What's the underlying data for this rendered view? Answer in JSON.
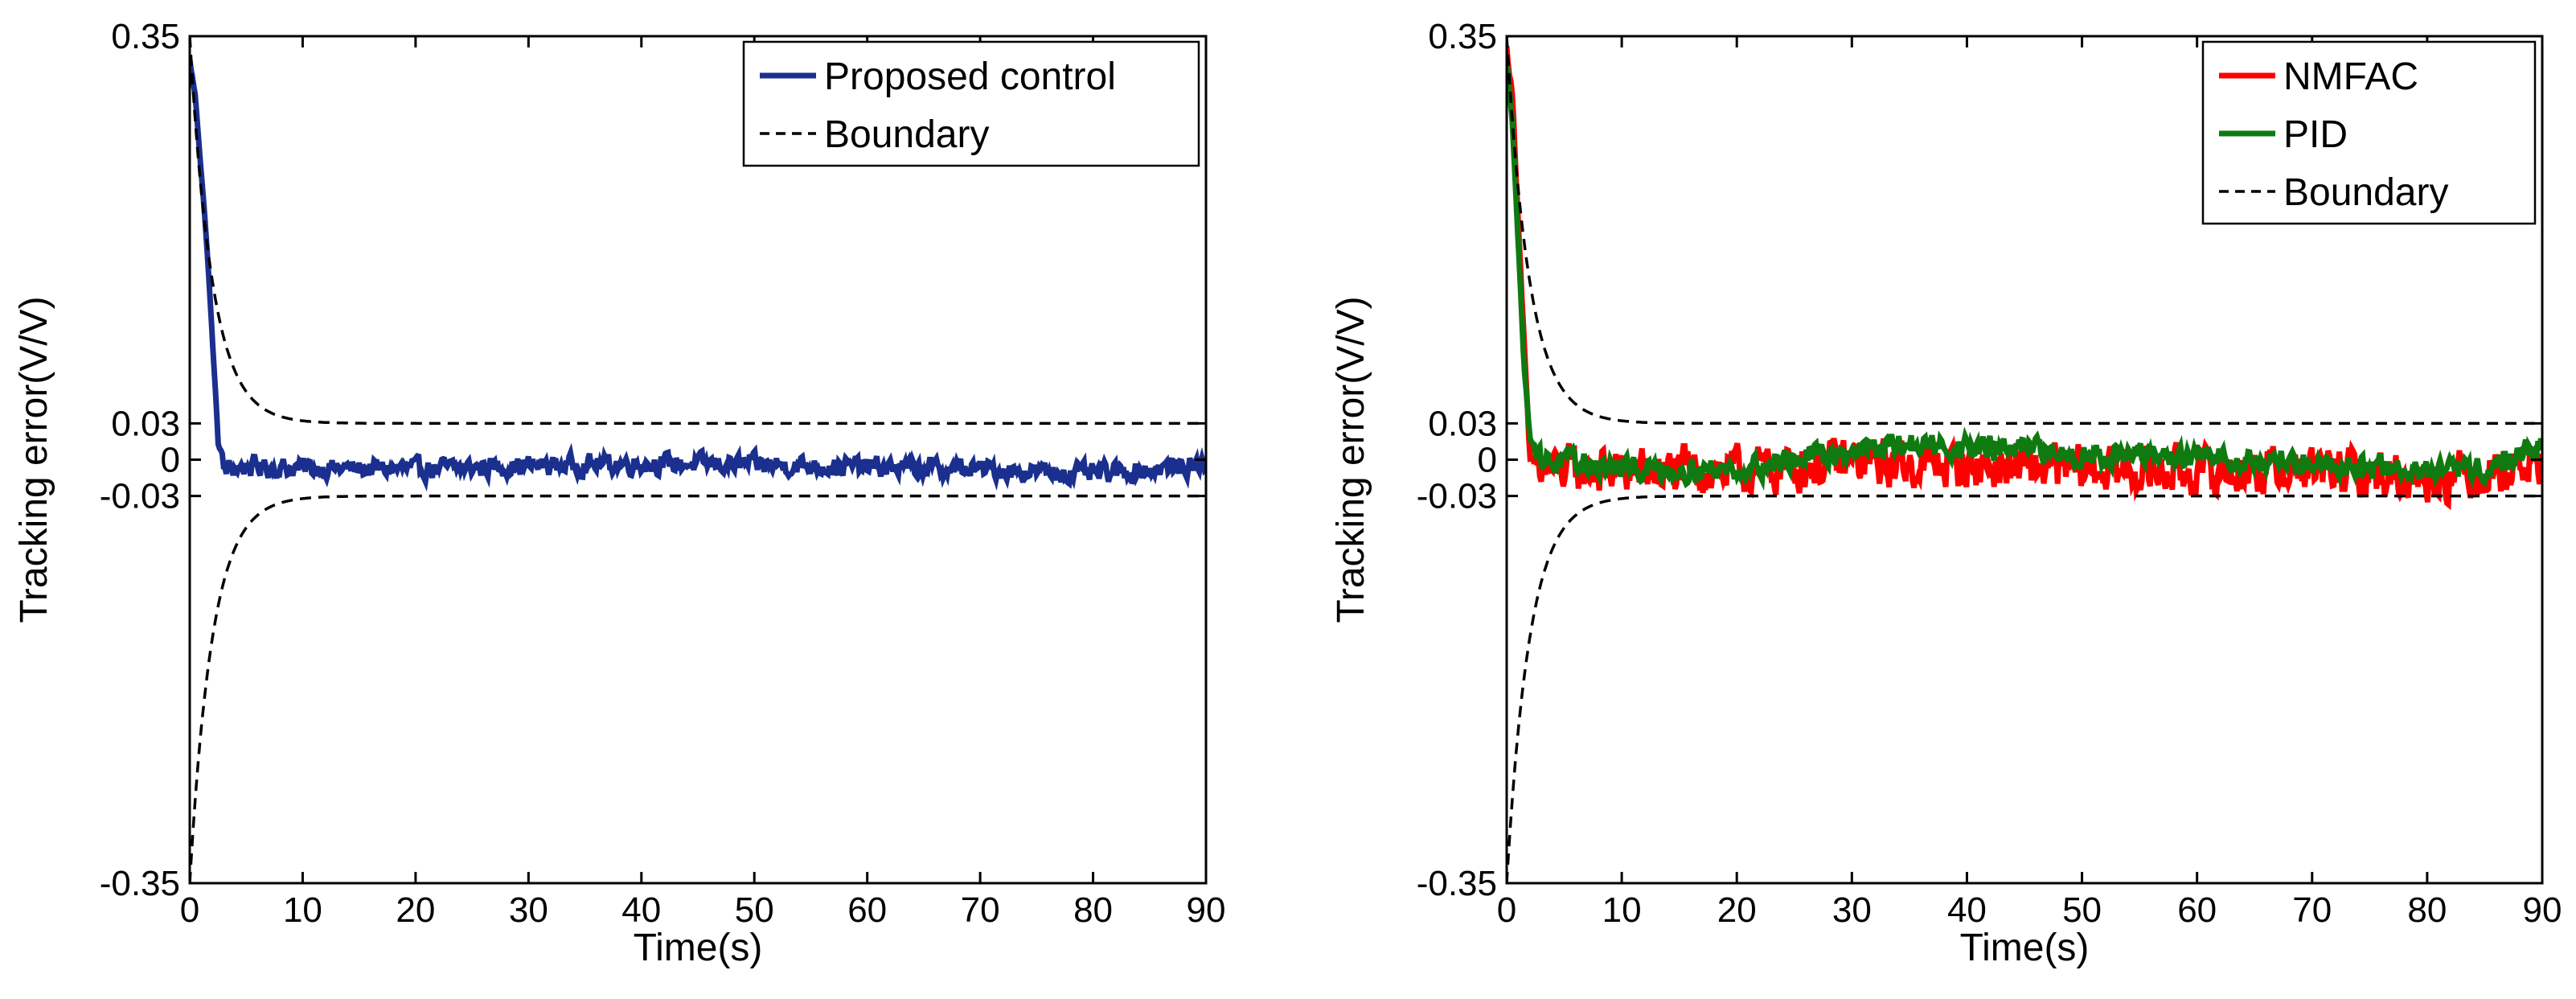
{
  "chart_data": [
    {
      "type": "line",
      "title": "",
      "xlabel": "Time(s)",
      "ylabel": "Tracking error(V/V)",
      "xlim": [
        0,
        90
      ],
      "ylim": [
        -0.35,
        0.35
      ],
      "xticks": [
        0,
        10,
        20,
        30,
        40,
        50,
        60,
        70,
        80,
        90
      ],
      "yticks": [
        -0.35,
        -0.03,
        0,
        0.03,
        0.35
      ],
      "ytick_labels": [
        "-0.35",
        "-0.03",
        "0",
        "0.03",
        "0.35"
      ],
      "legend_position": "top-right",
      "boundary": {
        "name": "Boundary",
        "rho0": 0.35,
        "rho_inf": 0.03,
        "decay_rate": 0.5,
        "color": "#000000",
        "style": "dashed"
      },
      "series": [
        {
          "name": "Proposed control",
          "color": "#1a2f8e",
          "x": [
            0,
            0.5,
            1,
            1.5,
            2,
            2.5,
            3,
            5,
            10,
            20,
            30,
            40,
            50,
            60,
            70,
            80,
            90
          ],
          "values": [
            0.33,
            0.3,
            0.24,
            0.18,
            0.1,
            0.02,
            -0.008,
            -0.006,
            -0.007,
            -0.008,
            -0.005,
            -0.003,
            -0.004,
            -0.006,
            -0.008,
            -0.012,
            -0.004
          ],
          "noise_amplitude": 0.012
        }
      ]
    },
    {
      "type": "line",
      "title": "",
      "xlabel": "Time(s)",
      "ylabel": "Tracking error(V/V)",
      "xlim": [
        0,
        90
      ],
      "ylim": [
        -0.35,
        0.35
      ],
      "xticks": [
        0,
        10,
        20,
        30,
        40,
        50,
        60,
        70,
        80,
        90
      ],
      "yticks": [
        -0.35,
        -0.03,
        0,
        0.03,
        0.35
      ],
      "ytick_labels": [
        "-0.35",
        "-0.03",
        "0",
        "0.03",
        "0.35"
      ],
      "legend_position": "top-right",
      "boundary": {
        "name": "Boundary",
        "rho0": 0.35,
        "rho_inf": 0.03,
        "decay_rate": 0.5,
        "color": "#000000",
        "style": "dashed"
      },
      "series": [
        {
          "name": "NMFAC",
          "color": "#ff0000",
          "x": [
            0,
            0.5,
            1,
            1.5,
            2,
            3,
            5,
            10,
            20,
            30,
            40,
            50,
            60,
            70,
            80,
            85,
            90
          ],
          "values": [
            0.34,
            0.3,
            0.2,
            0.1,
            0.0,
            -0.01,
            -0.008,
            -0.01,
            -0.01,
            -0.002,
            -0.005,
            -0.008,
            -0.01,
            -0.008,
            -0.015,
            -0.01,
            -0.002
          ],
          "noise_amplitude": 0.028
        },
        {
          "name": "PID",
          "color": "#0f7a10",
          "x": [
            0,
            0.5,
            1,
            1.5,
            2,
            3,
            5,
            10,
            20,
            30,
            35,
            40,
            45,
            50,
            60,
            70,
            80,
            85,
            90
          ],
          "values": [
            0.33,
            0.28,
            0.18,
            0.08,
            0.02,
            0.0,
            -0.002,
            -0.008,
            -0.008,
            0.008,
            0.012,
            0.01,
            0.008,
            0.004,
            0.002,
            -0.002,
            -0.01,
            -0.008,
            0.012
          ],
          "noise_amplitude": 0.014
        }
      ]
    }
  ]
}
